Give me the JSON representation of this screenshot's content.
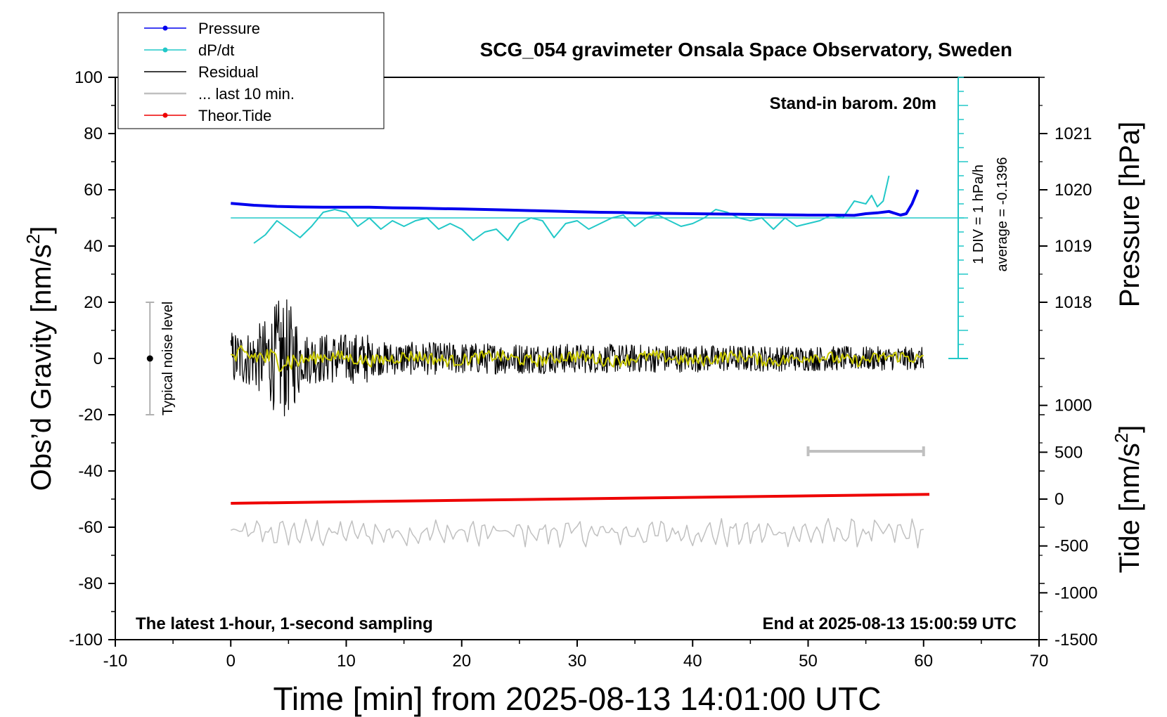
{
  "chart_data": {
    "type": "line",
    "title": "SCG_054 gravimeter Onsala Space Observatory, Sweden",
    "xlabel": "Time [min] from 2025-08-13 14:01:00 UTC",
    "ylabel_left": "Obs’d Gravity [nm/s²]",
    "ylabel_left_main": "Obs’d Gravity [nm/s",
    "ylabel_right_top": "Pressure [hPa]",
    "ylabel_right_bottom_main": "Tide [nm/s",
    "unit_sup": "2",
    "unit_close": "]",
    "xlim": [
      -10,
      70
    ],
    "ylim_left": [
      -100,
      100
    ],
    "x_ticks": [
      "-10",
      "0",
      "10",
      "20",
      "30",
      "40",
      "50",
      "60",
      "70"
    ],
    "y_ticks_left": [
      "100",
      "80",
      "60",
      "40",
      "20",
      "0",
      "-20",
      "-40",
      "-60",
      "-80",
      "-100"
    ],
    "pressure_ticks": [
      "1021",
      "1020",
      "1019",
      "1018"
    ],
    "tide_ticks": [
      "1000",
      "500",
      "0",
      "-500",
      "-1000",
      "-1500"
    ],
    "annotations": {
      "barometer": "Stand-in barom. 20m",
      "div_note": "1 DIV = 1 hPa/h",
      "average_note": "average = -0.1396",
      "noise_label": "Typical noise level",
      "bottom_left": "The latest 1-hour, 1-second sampling",
      "bottom_right": "End at 2025-08-13 15:00:59 UTC"
    },
    "legend": [
      {
        "label": "Pressure",
        "color": "#0000ee",
        "marker": true
      },
      {
        "label": "dP/dt",
        "color": "#22c8c8",
        "marker": true
      },
      {
        "label": "Residual",
        "color": "#000000",
        "marker": false
      },
      {
        "label": "... last 10 min.",
        "color": "#c0c0c0",
        "marker": false
      },
      {
        "label": "Theor.Tide",
        "color": "#ee0000",
        "marker": true
      }
    ],
    "series": [
      {
        "name": "Pressure",
        "axis": "left",
        "color": "#0000ee",
        "x": [
          0,
          2,
          4,
          6,
          8,
          10,
          12,
          14,
          16,
          18,
          20,
          22,
          24,
          26,
          28,
          30,
          32,
          34,
          36,
          38,
          40,
          42,
          44,
          46,
          48,
          50,
          52,
          54,
          55,
          56,
          57,
          58,
          58.5,
          59,
          59.5
        ],
        "y": [
          55.2,
          54.5,
          54.1,
          53.9,
          53.8,
          53.8,
          53.8,
          53.6,
          53.5,
          53.3,
          53.2,
          53.0,
          52.8,
          52.6,
          52.4,
          52.2,
          52.0,
          51.9,
          51.7,
          51.6,
          51.5,
          51.4,
          51.3,
          51.2,
          51.1,
          51.0,
          51.0,
          50.9,
          51.5,
          51.8,
          52.3,
          51.0,
          51.5,
          55.0,
          60.0
        ]
      },
      {
        "name": "dP/dt",
        "axis": "left",
        "color": "#22c8c8",
        "x": [
          2,
          3,
          4,
          5,
          6,
          7,
          8,
          9,
          10,
          11,
          12,
          13,
          14,
          15,
          16,
          17,
          18,
          19,
          20,
          21,
          22,
          23,
          24,
          25,
          26,
          27,
          28,
          29,
          30,
          31,
          32,
          33,
          34,
          35,
          36,
          37,
          38,
          39,
          40,
          41,
          42,
          43,
          44,
          45,
          46,
          47,
          48,
          49,
          50,
          51,
          52,
          53,
          54,
          55,
          55.5,
          56,
          56.5,
          57
        ],
        "y": [
          41,
          44,
          49,
          46,
          43,
          47,
          52,
          53,
          52,
          47,
          50,
          46,
          49,
          47,
          49,
          50,
          46,
          48,
          46,
          42,
          45,
          46,
          42,
          48,
          50,
          49,
          43,
          48,
          49,
          46,
          48,
          50,
          51,
          47,
          50,
          51,
          49,
          47,
          48,
          50,
          53,
          52,
          50,
          49,
          50,
          46,
          50,
          47,
          48,
          49,
          51,
          50,
          56,
          55,
          58,
          54,
          56,
          65
        ]
      },
      {
        "name": "Residual",
        "axis": "left",
        "color": "#000000",
        "x_range": [
          0,
          60
        ],
        "envelope_note": "approx. ±10 early, burst to ±22 near 4–5 min, then ±5"
      },
      {
        "name": "... last 10 min.",
        "axis": "left",
        "color": "#c0c0c0",
        "x_range": [
          0,
          60
        ],
        "baseline": -62
      },
      {
        "name": "Theor.Tide",
        "axis": "left",
        "color": "#ee0000",
        "x": [
          0,
          60.5
        ],
        "y": [
          -51.5,
          -48.3
        ]
      }
    ],
    "noise_bar": {
      "x": -7,
      "y_low": -20,
      "y_high": 20,
      "center": 0
    },
    "range_bar": {
      "x_start": 50,
      "x_end": 60,
      "y": -33
    },
    "dpdt_reference": {
      "y": 50,
      "scale_x": 63
    }
  }
}
